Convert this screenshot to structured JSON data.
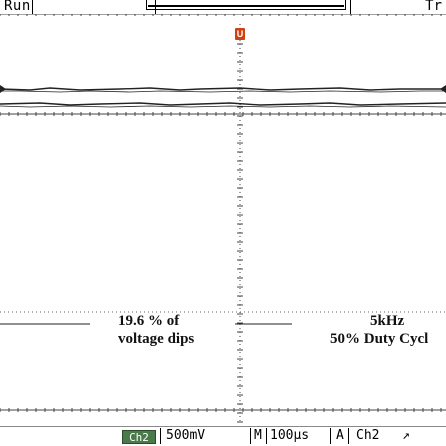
{
  "status": {
    "run_state": "Run",
    "trigger_state": "Tr"
  },
  "trigger_marker": "U",
  "annotations": {
    "left_line1": "19.6 % of",
    "left_line2": "voltage dips",
    "right_line1": "5kHz",
    "right_line2": "50% Duty Cycl"
  },
  "readout": {
    "channel_badge": "Ch2",
    "volts_per_div": "500mV",
    "timebase_label": "M",
    "time_per_div": "100µs",
    "trigger_label": "A",
    "trigger_source": "Ch2",
    "trigger_slope": "↗"
  },
  "colors": {
    "background": "#ffffff",
    "trace": "#222222",
    "grid": "#666666",
    "channel_badge": "#4a7a4a",
    "trigger_marker": "#d04010"
  }
}
